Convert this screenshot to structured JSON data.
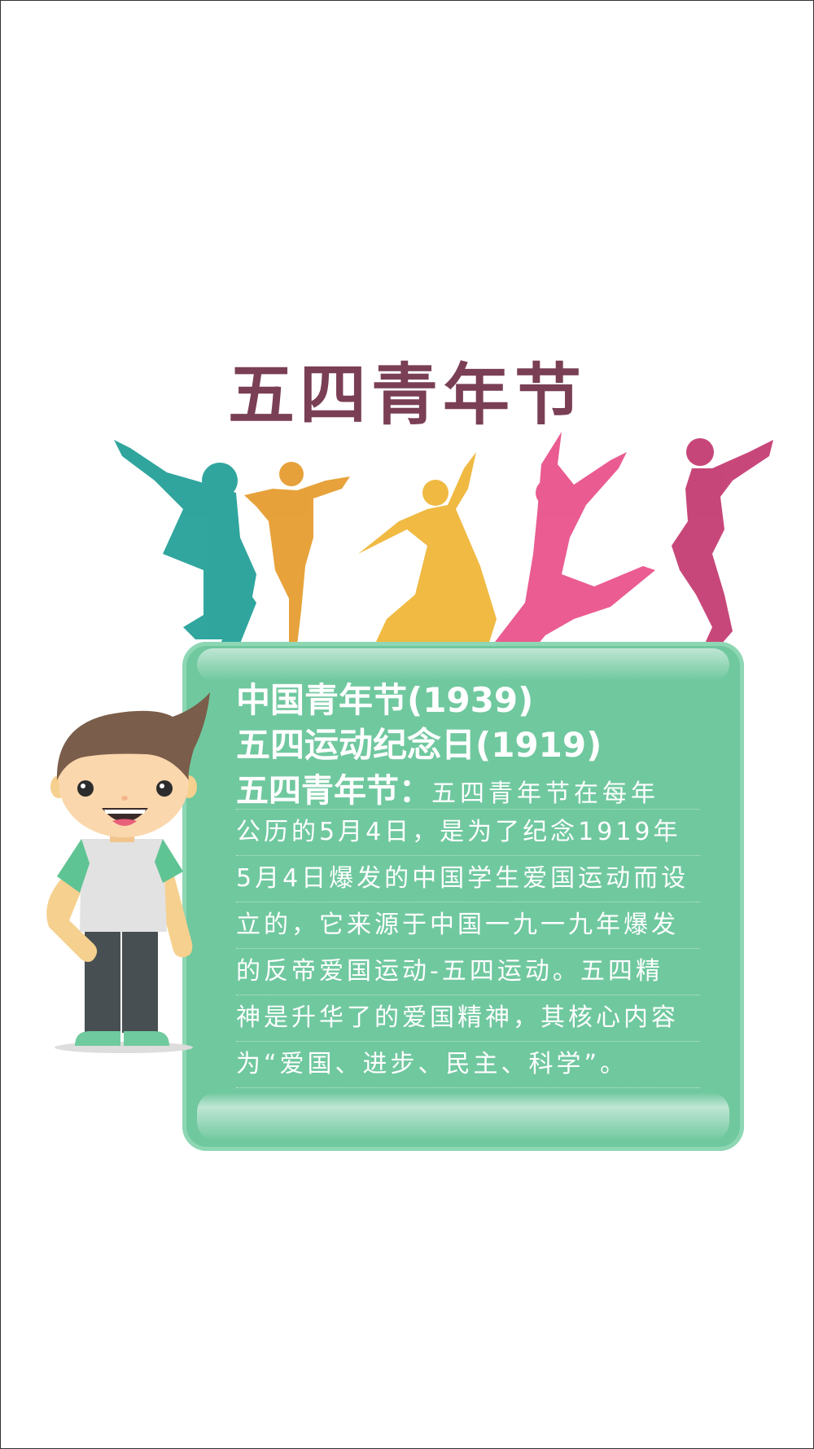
{
  "title": "五四青年节",
  "card": {
    "heading1": "中国青年节(1939)",
    "heading2": "五四运动纪念日(1919)",
    "heading3_lead": "五四青年节：",
    "heading3_inline": "五四青年节在每年",
    "lines": [
      "公历的5月4日，是为了纪念1919年",
      "5月4日爆发的中国学生爱国运动而设",
      "立的，它来源于中国一九一九年爆发",
      "的反帝爱国运动-五四运动。五四精",
      "神是升华了的爱国精神，其核心内容",
      "为“爱国、进步、民主、科学”。"
    ]
  },
  "colors": {
    "title": "#7a3f55",
    "card": "#70c89f",
    "teal": "#1e9e96",
    "orange": "#e8a52b",
    "pink": "#e84a86",
    "magenta": "#c2336b"
  },
  "icons": [
    "dancers-silhouette-icon",
    "cartoon-boy-icon"
  ]
}
